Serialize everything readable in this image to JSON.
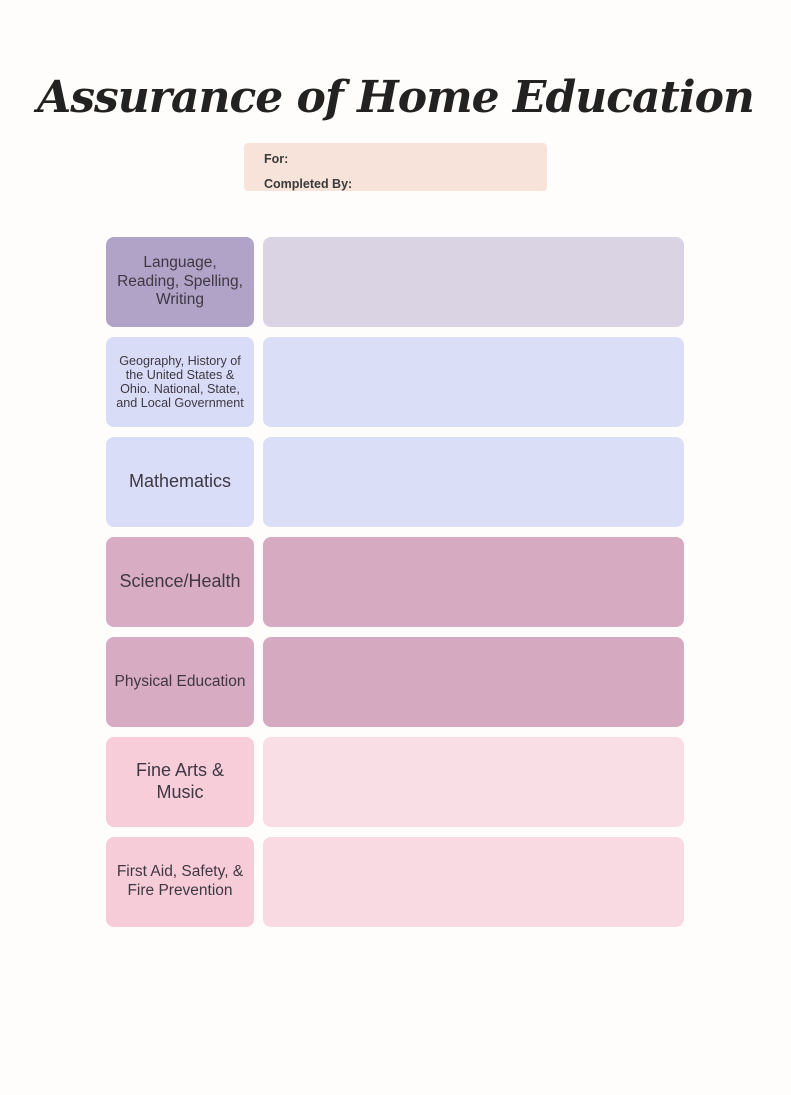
{
  "title": "Assurance of Home Education",
  "info_box": {
    "bg": "#f7e3da",
    "for_label": "For:",
    "completed_by_label": "Completed By:"
  },
  "colors": {
    "page_background": "#fffdfb",
    "title_text": "#222222",
    "label_text": "#3e3843"
  },
  "rows": [
    {
      "label": "Language, Reading, Spelling, Writing",
      "label_bg": "#b1a2c7",
      "content_bg": "#d9d3e3"
    },
    {
      "label": "Geography, History of the United States & Ohio. National, State, and Local Government",
      "label_bg": "#d9dcf6",
      "content_bg": "#dbdef7"
    },
    {
      "label": "Mathematics",
      "label_bg": "#daddf7",
      "content_bg": "#dbdef7"
    },
    {
      "label": "Science/Health",
      "label_bg": "#d8acc3",
      "content_bg": "#d6aac1"
    },
    {
      "label": "Physical Education",
      "label_bg": "#d7abc2",
      "content_bg": "#d5a9c0"
    },
    {
      "label": "Fine Arts & Music",
      "label_bg": "#f6cdd9",
      "content_bg": "#fadee5"
    },
    {
      "label": "First Aid, Safety, & Fire Prevention",
      "label_bg": "#f5ccd7",
      "content_bg": "#f9dae2"
    }
  ]
}
